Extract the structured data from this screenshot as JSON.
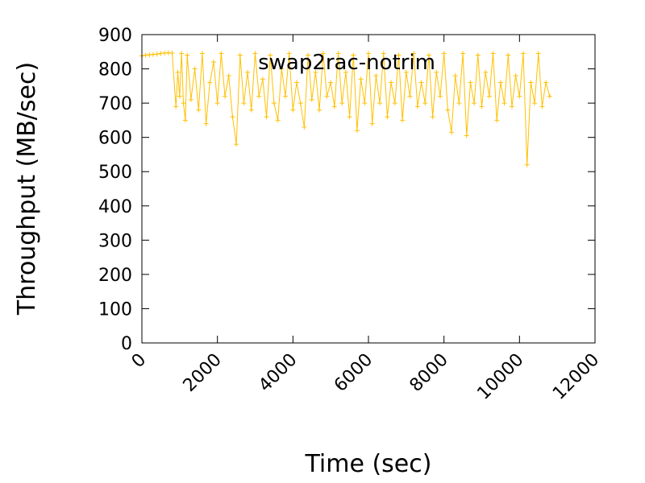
{
  "chart_data": {
    "type": "line",
    "title": "",
    "xlabel": "Time (sec)",
    "ylabel": "Throughput (MB/sec)",
    "xlim": [
      0,
      12000
    ],
    "ylim": [
      0,
      900
    ],
    "x_ticks": [
      "0",
      "2000",
      "4000",
      "6000",
      "8000",
      "10000",
      "12000"
    ],
    "y_ticks": [
      "0",
      "100",
      "200",
      "300",
      "400",
      "500",
      "600",
      "700",
      "800",
      "900"
    ],
    "grid": false,
    "legend_position": "top-center",
    "series": [
      {
        "name": "swap2rac-notrim",
        "color": "#ffc000",
        "marker": "plus",
        "x": [
          0,
          100,
          200,
          300,
          400,
          500,
          600,
          700,
          800,
          900,
          950,
          1000,
          1050,
          1100,
          1150,
          1200,
          1300,
          1400,
          1500,
          1600,
          1700,
          1800,
          1900,
          2000,
          2100,
          2200,
          2300,
          2400,
          2500,
          2600,
          2700,
          2800,
          2900,
          3000,
          3100,
          3200,
          3300,
          3400,
          3500,
          3600,
          3700,
          3800,
          3900,
          4000,
          4100,
          4200,
          4300,
          4400,
          4500,
          4600,
          4700,
          4800,
          4900,
          5000,
          5100,
          5200,
          5300,
          5400,
          5500,
          5600,
          5700,
          5800,
          5900,
          6000,
          6100,
          6200,
          6300,
          6400,
          6500,
          6600,
          6700,
          6800,
          6900,
          7000,
          7100,
          7200,
          7300,
          7400,
          7500,
          7600,
          7700,
          7800,
          7900,
          8000,
          8100,
          8200,
          8300,
          8400,
          8500,
          8600,
          8700,
          8800,
          8900,
          9000,
          9100,
          9200,
          9300,
          9400,
          9500,
          9600,
          9700,
          9800,
          9900,
          10000,
          10100,
          10200,
          10300,
          10400,
          10500,
          10600,
          10700,
          10800
        ],
        "values": [
          838,
          840,
          841,
          842,
          843,
          845,
          846,
          847,
          846,
          690,
          790,
          720,
          845,
          700,
          650,
          840,
          710,
          800,
          680,
          845,
          640,
          760,
          820,
          700,
          845,
          720,
          780,
          660,
          580,
          840,
          700,
          790,
          680,
          845,
          720,
          770,
          660,
          840,
          700,
          650,
          800,
          720,
          845,
          680,
          760,
          700,
          630,
          840,
          710,
          790,
          680,
          845,
          720,
          760,
          690,
          845,
          700,
          790,
          660,
          840,
          620,
          770,
          700,
          845,
          640,
          780,
          700,
          845,
          660,
          760,
          700,
          840,
          650,
          790,
          720,
          845,
          690,
          760,
          700,
          840,
          660,
          790,
          720,
          845,
          680,
          615,
          780,
          700,
          845,
          605,
          760,
          700,
          840,
          690,
          790,
          720,
          845,
          650,
          760,
          700,
          840,
          690,
          780,
          720,
          845,
          520,
          760,
          700,
          845,
          690,
          760,
          720
        ]
      }
    ]
  }
}
